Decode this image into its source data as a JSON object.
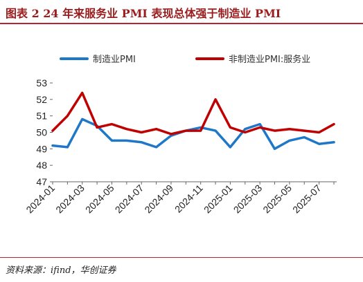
{
  "header": {
    "title": "图表 2 24 年来服务业 PMI 表现总体强于制造业 PMI"
  },
  "footer": {
    "source": "资料来源：ifind，华创证券"
  },
  "chart_data": {
    "type": "line",
    "title": "图表 2 24 年来服务业 PMI 表现总体强于制造业 PMI",
    "x": [
      "2024-01",
      "2024-02",
      "2024-03",
      "2024-04",
      "2024-05",
      "2024-06",
      "2024-07",
      "2024-08",
      "2024-09",
      "2024-10",
      "2024-11",
      "2024-12",
      "2025-01",
      "2025-02",
      "2025-03",
      "2025-04",
      "2025-05",
      "2025-06",
      "2025-07",
      "2025-08"
    ],
    "tick_labels": [
      "2024-01",
      "2024-03",
      "2024-05",
      "2024-07",
      "2024-09",
      "2024-11",
      "2025-01",
      "2025-03",
      "2025-05",
      "2025-07"
    ],
    "ylim": [
      47,
      53
    ],
    "yticks": [
      47,
      48,
      49,
      50,
      51,
      52,
      53
    ],
    "grid": false,
    "legend_position": "top-center",
    "series": [
      {
        "name": "制造业PMI",
        "color": "#1f77c8",
        "values": [
          49.2,
          49.1,
          50.8,
          50.4,
          49.5,
          49.5,
          49.4,
          49.1,
          49.8,
          50.1,
          50.3,
          50.1,
          49.1,
          50.2,
          50.5,
          49.0,
          49.5,
          49.7,
          49.3,
          49.4
        ]
      },
      {
        "name": "非制造业PMI:服务业",
        "color": "#c00000",
        "values": [
          50.1,
          51.0,
          52.4,
          50.3,
          50.5,
          50.2,
          50.0,
          50.2,
          49.9,
          50.1,
          50.1,
          52.0,
          50.3,
          50.0,
          50.3,
          50.1,
          50.2,
          50.1,
          50.0,
          50.5
        ]
      }
    ]
  }
}
